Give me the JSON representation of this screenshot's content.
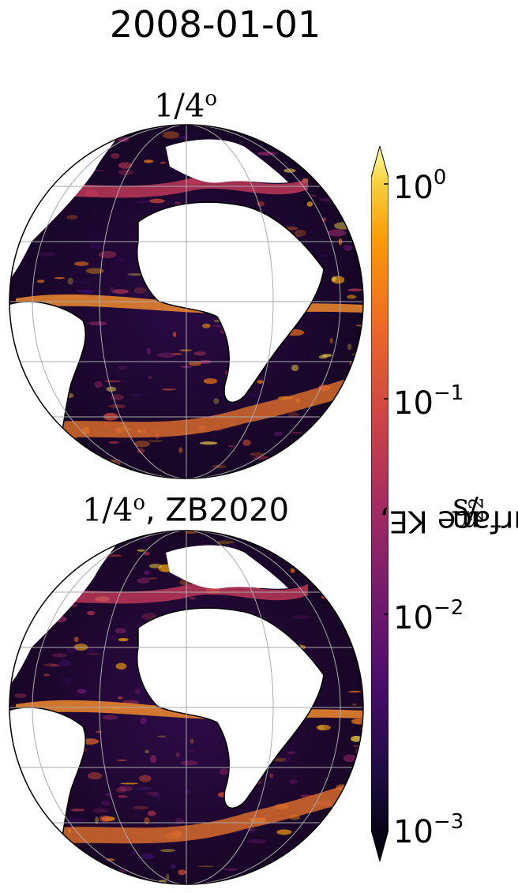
{
  "title": "2008-01-01",
  "panels": [
    {
      "title_math": "1/4",
      "title_sup": "o",
      "title_suffix": ""
    },
    {
      "title_math": "1/4",
      "title_sup": "o",
      "title_suffix": ", ZB2020"
    }
  ],
  "colorbar": {
    "label_text": "Surface KE, ",
    "label_unit_a": "m",
    "label_unit_sup1": "2",
    "label_unit_b": "/s",
    "label_unit_sup2": "2",
    "ticks": [
      {
        "base": "10",
        "exp": "0"
      },
      {
        "base": "10",
        "exp": "−1"
      },
      {
        "base": "10",
        "exp": "−2"
      },
      {
        "base": "10",
        "exp": "−3"
      }
    ],
    "colormap": "inferno",
    "scale": "log",
    "range": [
      0.001,
      1
    ],
    "extend": "both"
  },
  "map": {
    "projection": "orthographic",
    "region": "Atlantic Ocean",
    "gridlines": true,
    "land_color": "#ffffff",
    "gridline_color": "#aaaaaa"
  }
}
